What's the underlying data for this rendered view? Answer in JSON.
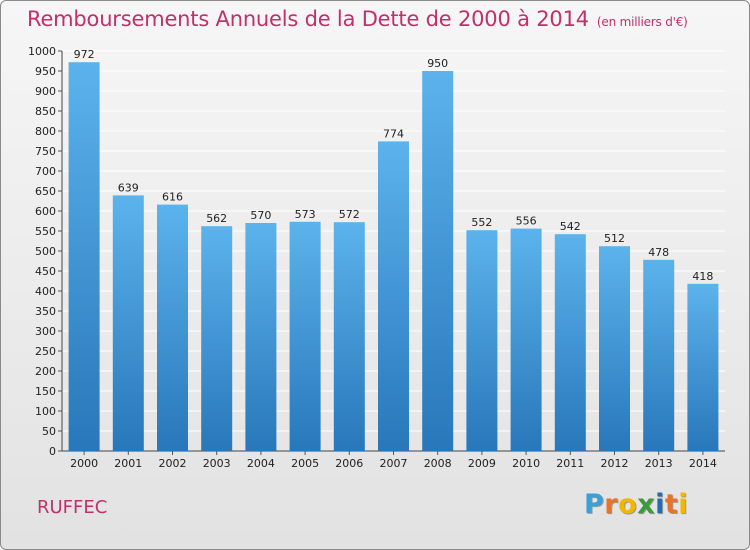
{
  "header": {
    "title": "Remboursements Annuels de la Dette de 2000 à 2014",
    "unit": "(en milliers d'€)"
  },
  "commune": "RUFFEC",
  "logo": {
    "letters": [
      "P",
      "r",
      "o",
      "x",
      "i",
      "t",
      "i"
    ],
    "colors": [
      "#3aa0d8",
      "#e8732a",
      "#f2b800",
      "#3b9a3b",
      "#1f6db5",
      "#e8732a",
      "#f2b800"
    ]
  },
  "colors": {
    "bar_light": "#5cb3ec",
    "bar_dark": "#2877ba",
    "title": "#c0306a"
  },
  "chart_data": {
    "type": "bar",
    "title": "Remboursements Annuels de la Dette de 2000 à 2014",
    "xlabel": "",
    "ylabel": "",
    "categories": [
      "2000",
      "2001",
      "2002",
      "2003",
      "2004",
      "2005",
      "2006",
      "2007",
      "2008",
      "2009",
      "2010",
      "2011",
      "2012",
      "2013",
      "2014"
    ],
    "values": [
      972,
      639,
      616,
      562,
      570,
      573,
      572,
      774,
      950,
      552,
      556,
      542,
      512,
      478,
      418
    ],
    "ylim": [
      0,
      1000
    ],
    "yticks": [
      0,
      50,
      100,
      150,
      200,
      250,
      300,
      350,
      400,
      450,
      500,
      550,
      600,
      650,
      700,
      750,
      800,
      850,
      900,
      950,
      1000
    ],
    "grid": true,
    "legend": "none"
  }
}
